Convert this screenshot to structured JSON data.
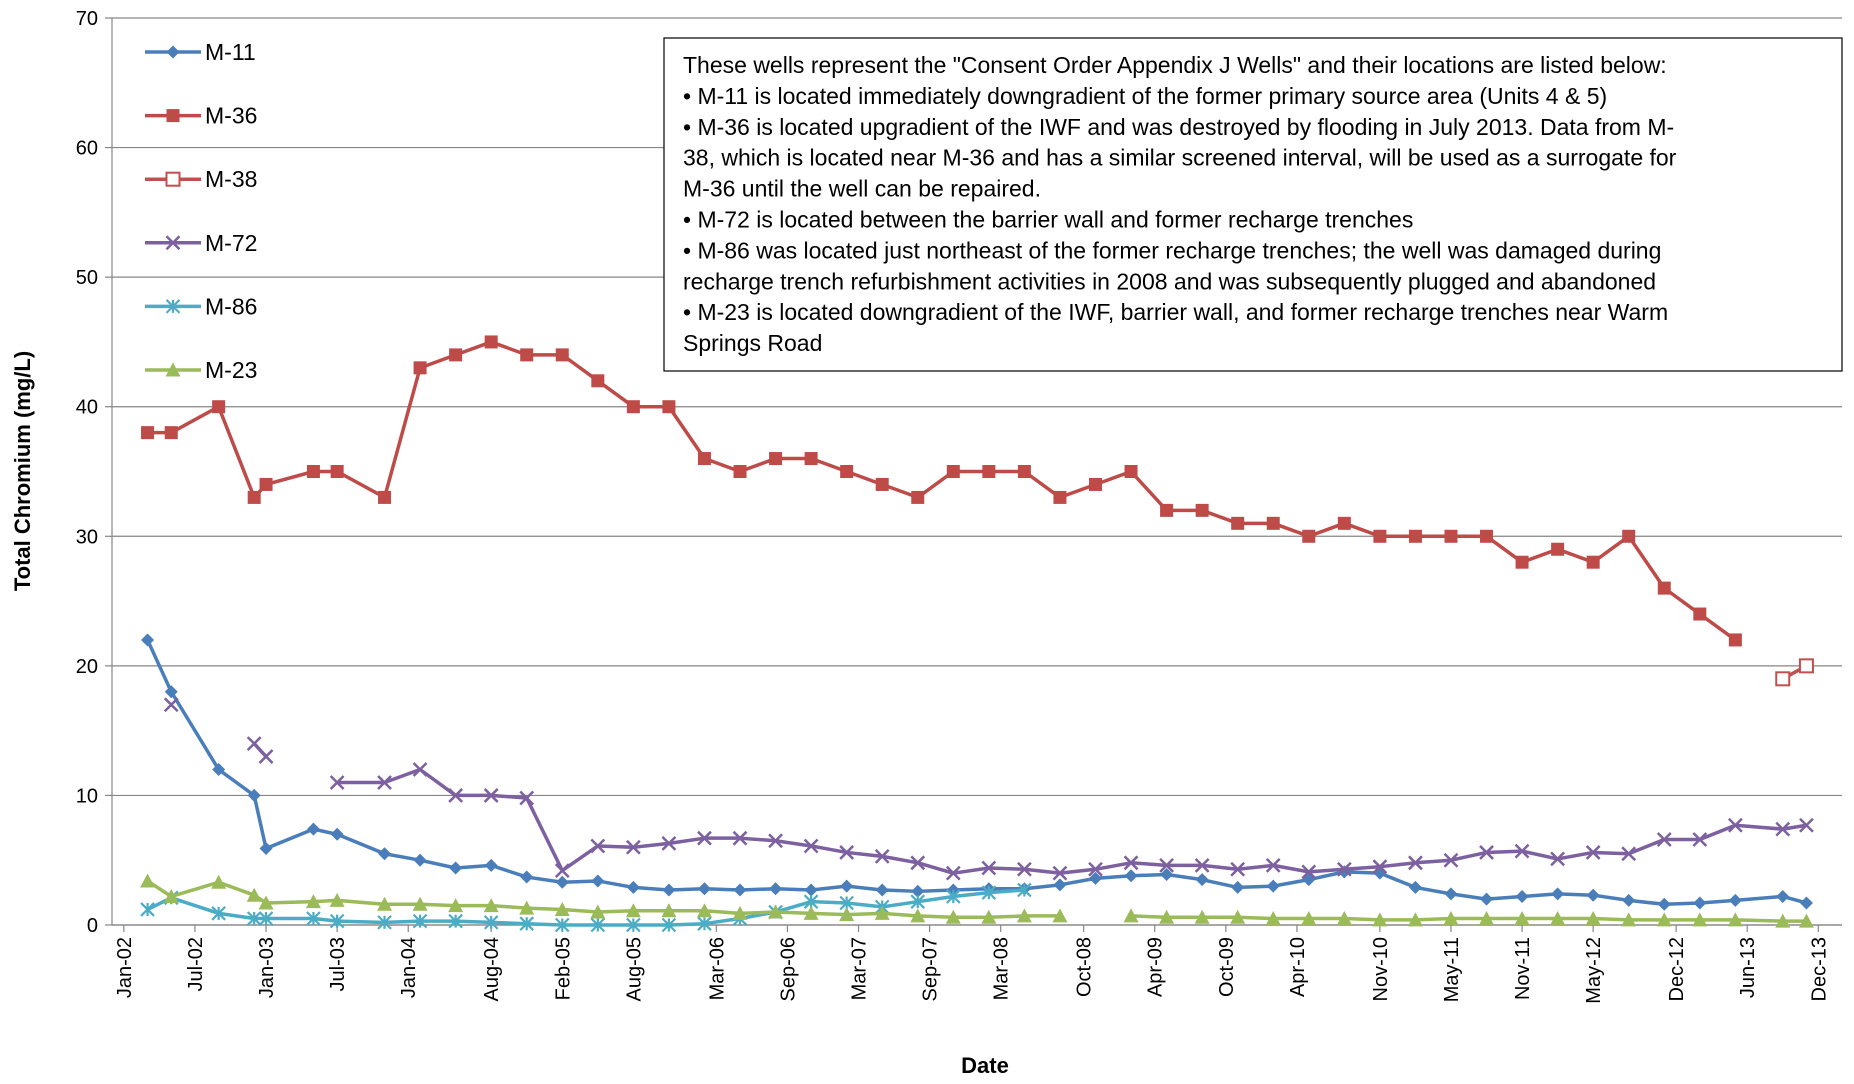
{
  "chart_data": {
    "type": "line",
    "y_label": "Total Chromium (mg/L)",
    "x_label": "Date",
    "annotation": [
      "These wells represent the \"Consent Order Appendix J Wells\" and their locations are listed below:",
      "• M-11 is located immediately downgradient of the former primary source area (Units 4 & 5)",
      "• M-36 is located upgradient of the IWF and was destroyed by flooding in July 2013. Data from M-",
      "38, which is located near M-36 and has a similar screened interval, will be used as a surrogate for",
      "M-36 until the well can be repaired.",
      "• M-72 is located between the barrier wall and former recharge trenches",
      "• M-86 was located just northeast of the former recharge trenches; the well was damaged during",
      "recharge trench refurbishment activities in 2008 and was subsequently plugged and abandoned",
      "• M-23 is located downgradient of the IWF, barrier wall, and former recharge trenches near Warm",
      "Springs Road"
    ],
    "x": [
      "2002-03",
      "2002-05",
      "2002-09",
      "2002-12",
      "2003-01",
      "2003-05",
      "2003-07",
      "2003-11",
      "2004-02",
      "2004-05",
      "2004-08",
      "2004-11",
      "2005-02",
      "2005-05",
      "2005-08",
      "2005-11",
      "2006-02",
      "2006-05",
      "2006-08",
      "2006-11",
      "2007-02",
      "2007-05",
      "2007-08",
      "2007-11",
      "2008-02",
      "2008-05",
      "2008-08",
      "2008-11",
      "2009-02",
      "2009-05",
      "2009-08",
      "2009-11",
      "2010-02",
      "2010-05",
      "2010-08",
      "2010-11",
      "2011-02",
      "2011-05",
      "2011-08",
      "2011-11",
      "2012-02",
      "2012-05",
      "2012-08",
      "2012-11",
      "2013-02",
      "2013-05",
      "2013-09",
      "2013-11"
    ],
    "series": [
      {
        "name": "M-11",
        "color": "#4a7ebb",
        "marker": "diamond",
        "values": [
          22,
          18,
          12,
          10,
          5.9,
          7.4,
          7.0,
          5.5,
          5.0,
          4.4,
          4.6,
          3.7,
          3.3,
          3.4,
          2.9,
          2.7,
          2.8,
          2.7,
          2.8,
          2.7,
          3.0,
          2.7,
          2.6,
          2.7,
          2.8,
          2.8,
          3.1,
          3.6,
          3.8,
          3.9,
          3.5,
          2.9,
          3.0,
          3.5,
          4.1,
          4.0,
          2.9,
          2.4,
          2.0,
          2.2,
          2.4,
          2.3,
          1.9,
          1.6,
          1.7,
          1.9,
          2.2,
          1.7
        ]
      },
      {
        "name": "M-36",
        "color": "#be4b48",
        "marker": "square",
        "values": [
          38,
          38,
          40,
          33,
          34,
          35,
          35,
          33,
          43,
          44,
          45,
          44,
          44,
          42,
          40,
          40,
          36,
          35,
          36,
          36,
          35,
          34,
          33,
          35,
          35,
          35,
          33,
          34,
          35,
          32,
          32,
          31,
          31,
          30,
          31,
          30,
          30,
          30,
          30,
          28,
          29,
          28,
          30,
          26,
          24,
          22,
          null,
          null
        ]
      },
      {
        "name": "M-38",
        "color": "#c0504d",
        "marker": "square-open",
        "values": [
          null,
          null,
          null,
          null,
          null,
          null,
          null,
          null,
          null,
          null,
          null,
          null,
          null,
          null,
          null,
          null,
          null,
          null,
          null,
          null,
          null,
          null,
          null,
          null,
          null,
          null,
          null,
          null,
          null,
          null,
          null,
          null,
          null,
          null,
          null,
          null,
          null,
          null,
          null,
          null,
          null,
          null,
          null,
          null,
          null,
          null,
          19,
          20
        ]
      },
      {
        "name": "M-72",
        "color": "#7d60a0",
        "marker": "x",
        "values": [
          null,
          17,
          null,
          14,
          13,
          null,
          11,
          11,
          12,
          10,
          10,
          9.8,
          4.2,
          6.1,
          6.0,
          6.3,
          6.7,
          6.7,
          6.5,
          6.1,
          5.6,
          5.3,
          4.8,
          4.0,
          4.4,
          4.3,
          4.0,
          4.3,
          4.8,
          4.6,
          4.6,
          4.3,
          4.6,
          4.1,
          4.3,
          4.5,
          4.8,
          5.0,
          5.6,
          5.7,
          5.1,
          5.6,
          5.5,
          6.6,
          6.6,
          7.7,
          7.4,
          7.7
        ]
      },
      {
        "name": "M-86",
        "color": "#4bacc6",
        "marker": "asterisk",
        "values": [
          1.2,
          2.1,
          0.9,
          0.5,
          0.5,
          0.5,
          0.3,
          0.2,
          0.3,
          0.3,
          0.2,
          0.1,
          0,
          0,
          0,
          0,
          0.1,
          0.5,
          1.0,
          1.8,
          1.7,
          1.4,
          1.8,
          2.2,
          2.5,
          2.7,
          null,
          null,
          null,
          null,
          null,
          null,
          null,
          null,
          null,
          null,
          null,
          null,
          null,
          null,
          null,
          null,
          null,
          null,
          null,
          null,
          null,
          null
        ]
      },
      {
        "name": "M-23",
        "color": "#9bbb59",
        "marker": "triangle",
        "values": [
          3.4,
          2.2,
          3.3,
          2.3,
          1.7,
          1.8,
          1.9,
          1.6,
          1.6,
          1.5,
          1.5,
          1.3,
          1.2,
          1.0,
          1.1,
          1.1,
          1.1,
          0.9,
          1.0,
          0.9,
          0.8,
          0.9,
          0.7,
          0.6,
          0.6,
          0.7,
          0.7,
          null,
          0.7,
          0.6,
          0.6,
          0.6,
          0.5,
          0.5,
          0.5,
          0.4,
          0.4,
          0.5,
          0.5,
          0.5,
          0.5,
          0.5,
          0.4,
          0.4,
          0.4,
          0.4,
          0.3,
          0.3
        ]
      }
    ],
    "xlim": [
      "2001-12",
      "2014-02"
    ],
    "xticks": [
      {
        "value": "2002-01",
        "label": "Jan-02"
      },
      {
        "value": "2002-07",
        "label": "Jul-02"
      },
      {
        "value": "2003-01",
        "label": "Jan-03"
      },
      {
        "value": "2003-07",
        "label": "Jul-03"
      },
      {
        "value": "2004-01",
        "label": "Jan-04"
      },
      {
        "value": "2004-08",
        "label": "Aug-04"
      },
      {
        "value": "2005-02",
        "label": "Feb-05"
      },
      {
        "value": "2005-08",
        "label": "Aug-05"
      },
      {
        "value": "2006-03",
        "label": "Mar-06"
      },
      {
        "value": "2006-09",
        "label": "Sep-06"
      },
      {
        "value": "2007-03",
        "label": "Mar-07"
      },
      {
        "value": "2007-09",
        "label": "Sep-07"
      },
      {
        "value": "2008-03",
        "label": "Mar-08"
      },
      {
        "value": "2008-10",
        "label": "Oct-08"
      },
      {
        "value": "2009-04",
        "label": "Apr-09"
      },
      {
        "value": "2009-10",
        "label": "Oct-09"
      },
      {
        "value": "2010-04",
        "label": "Apr-10"
      },
      {
        "value": "2010-11",
        "label": "Nov-10"
      },
      {
        "value": "2011-05",
        "label": "May-11"
      },
      {
        "value": "2011-11",
        "label": "Nov-11"
      },
      {
        "value": "2012-05",
        "label": "May-12"
      },
      {
        "value": "2012-12",
        "label": "Dec-12"
      },
      {
        "value": "2013-06",
        "label": "Jun-13"
      },
      {
        "value": "2013-12",
        "label": "Dec-13"
      }
    ],
    "ylim": [
      0,
      70
    ],
    "yticks": [
      0,
      10,
      20,
      30,
      40,
      50,
      60,
      70
    ],
    "grid": true
  }
}
